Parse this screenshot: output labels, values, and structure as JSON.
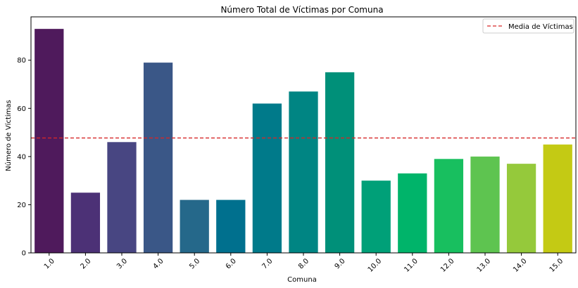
{
  "chart_data": {
    "type": "bar",
    "title": "Número Total de Víctimas por Comuna",
    "xlabel": "Comuna",
    "ylabel": "Número de Víctimas",
    "categories": [
      "1.0",
      "2.0",
      "3.0",
      "4.0",
      "5.0",
      "6.0",
      "7.0",
      "8.0",
      "9.0",
      "10.0",
      "11.0",
      "12.0",
      "13.0",
      "14.0",
      "15.0"
    ],
    "values": [
      93,
      25,
      46,
      79,
      22,
      22,
      62,
      67,
      75,
      30,
      33,
      39,
      40,
      37,
      45
    ],
    "bar_colors": [
      "#4f1a5c",
      "#4c3176",
      "#484682",
      "#3a5787",
      "#25688a",
      "#00708e",
      "#007a8a",
      "#008583",
      "#009079",
      "#00a078",
      "#00b46a",
      "#18bf5f",
      "#5ec450",
      "#95c93b",
      "#c4ca14"
    ],
    "ylim": [
      0,
      98
    ],
    "yticks": [
      0,
      20,
      40,
      60,
      80
    ],
    "mean_line": {
      "value": 47.7,
      "label": "Media de Víctimas",
      "color": "#d62728",
      "style": "dashed"
    },
    "legend_position": "top-right",
    "grid": false,
    "x_tick_rotation": -45
  }
}
